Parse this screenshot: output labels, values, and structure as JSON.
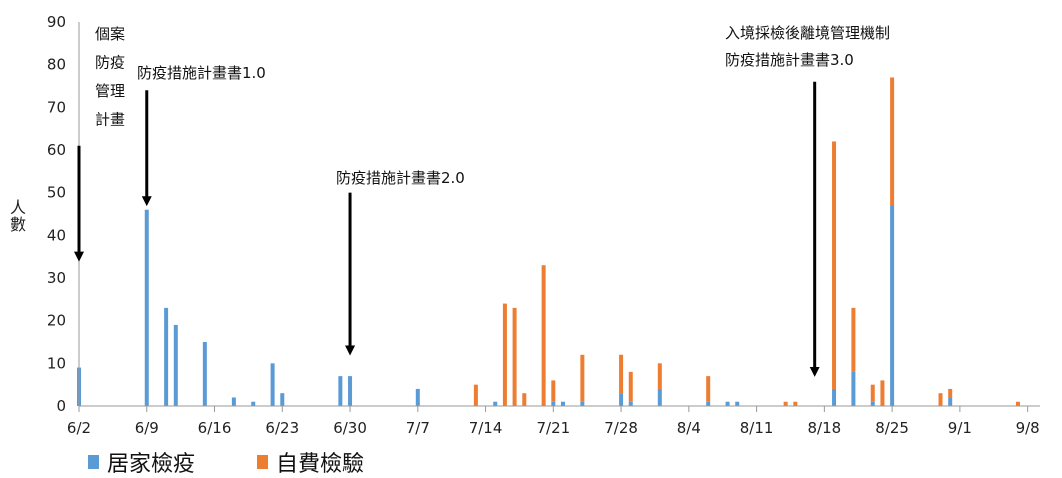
{
  "chart_data": {
    "type": "bar",
    "stacked": true,
    "ylabel": "人數",
    "ylim": [
      0,
      90
    ],
    "yticks": [
      0,
      10,
      20,
      30,
      40,
      50,
      60,
      70,
      80,
      90
    ],
    "xticks": [
      "6/2",
      "6/9",
      "6/16",
      "6/23",
      "6/30",
      "7/7",
      "7/14",
      "7/21",
      "7/28",
      "8/4",
      "8/11",
      "8/18",
      "8/25",
      "9/1",
      "9/8"
    ],
    "grid": false,
    "legend_position": "bottom-left",
    "series": [
      {
        "name": "居家檢疫",
        "color": "#5b9bd5",
        "points": [
          {
            "day": 2,
            "value": 9
          },
          {
            "day": 9,
            "value": 46
          },
          {
            "day": 11,
            "value": 23
          },
          {
            "day": 12,
            "value": 19
          },
          {
            "day": 15,
            "value": 15
          },
          {
            "day": 18,
            "value": 2
          },
          {
            "day": 20,
            "value": 1
          },
          {
            "day": 22,
            "value": 10
          },
          {
            "day": 23,
            "value": 3
          },
          {
            "day": 29,
            "value": 7
          },
          {
            "day": 30,
            "value": 7
          },
          {
            "day": 37,
            "value": 4
          },
          {
            "day": 45,
            "value": 1
          },
          {
            "day": 51,
            "value": 1
          },
          {
            "day": 52,
            "value": 1
          },
          {
            "day": 54,
            "value": 1
          },
          {
            "day": 58,
            "value": 3
          },
          {
            "day": 59,
            "value": 1
          },
          {
            "day": 62,
            "value": 4
          },
          {
            "day": 67,
            "value": 1
          },
          {
            "day": 69,
            "value": 1
          },
          {
            "day": 70,
            "value": 1
          },
          {
            "day": 80,
            "value": 4
          },
          {
            "day": 82,
            "value": 8
          },
          {
            "day": 84,
            "value": 1
          },
          {
            "day": 86,
            "value": 47
          },
          {
            "day": 92,
            "value": 2
          }
        ]
      },
      {
        "name": "自費檢驗",
        "color": "#ed7d31",
        "points": [
          {
            "day": 43,
            "value": 5
          },
          {
            "day": 46,
            "value": 24
          },
          {
            "day": 47,
            "value": 23
          },
          {
            "day": 48,
            "value": 3
          },
          {
            "day": 50,
            "value": 33
          },
          {
            "day": 51,
            "value": 5
          },
          {
            "day": 54,
            "value": 11
          },
          {
            "day": 58,
            "value": 9
          },
          {
            "day": 59,
            "value": 7
          },
          {
            "day": 62,
            "value": 6
          },
          {
            "day": 67,
            "value": 6
          },
          {
            "day": 75,
            "value": 1
          },
          {
            "day": 76,
            "value": 1
          },
          {
            "day": 80,
            "value": 58
          },
          {
            "day": 82,
            "value": 15
          },
          {
            "day": 84,
            "value": 4
          },
          {
            "day": 85,
            "value": 6
          },
          {
            "day": 86,
            "value": 30
          },
          {
            "day": 91,
            "value": 3
          },
          {
            "day": 92,
            "value": 2
          },
          {
            "day": 99,
            "value": 1
          }
        ]
      }
    ],
    "annotations": [
      {
        "lines": [
          "個案",
          "防疫",
          "管理",
          "計畫"
        ],
        "arrow_day": 2,
        "arrow_from": 61,
        "arrow_to": 35
      },
      {
        "lines": [
          "防疫措施計畫書1.0"
        ],
        "arrow_day": 9,
        "arrow_from": 74,
        "arrow_to": 48
      },
      {
        "lines": [
          "防疫措施計畫書2.0"
        ],
        "arrow_day": 30,
        "arrow_from": 50,
        "arrow_to": 13
      },
      {
        "lines": [
          "入境採檢後離境管理機制",
          "防疫措施計畫書3.0"
        ],
        "arrow_day": 78,
        "arrow_from": 76,
        "arrow_to": 8
      }
    ]
  },
  "legend": [
    {
      "label": "居家檢疫",
      "color": "#5b9bd5"
    },
    {
      "label": "自費檢驗",
      "color": "#ed7d31"
    }
  ]
}
